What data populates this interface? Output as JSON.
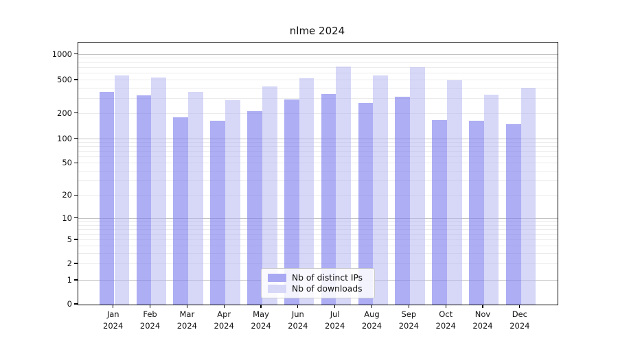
{
  "title": "nlme 2024",
  "y_axis": {
    "tick_labels": [
      "0",
      "1",
      "2",
      "5",
      "10",
      "20",
      "50",
      "100",
      "200",
      "500",
      "1000"
    ],
    "tick_values": [
      0,
      1,
      2,
      5,
      10,
      20,
      50,
      100,
      200,
      500,
      1000
    ]
  },
  "x_axis": {
    "months": [
      "Jan",
      "Feb",
      "Mar",
      "Apr",
      "May",
      "Jun",
      "Jul",
      "Aug",
      "Sep",
      "Oct",
      "Nov",
      "Dec"
    ],
    "year": "2024"
  },
  "legend": {
    "items": [
      {
        "label": "Nb of distinct IPs",
        "swatch": "#a9a9f3"
      },
      {
        "label": "Nb of downloads",
        "swatch": "#d7d7f8"
      }
    ]
  },
  "colors": {
    "ips_bar": "rgba(124,124,237,0.62)",
    "downloads_bar": "rgba(178,178,241,0.52)",
    "grid_major": "#c3c3c3",
    "grid_minor": "#ebebeb",
    "axis": "#000000"
  },
  "chart_data": {
    "type": "bar",
    "title": "nlme 2024",
    "categories": [
      "Jan 2024",
      "Feb 2024",
      "Mar 2024",
      "Apr 2024",
      "May 2024",
      "Jun 2024",
      "Jul 2024",
      "Aug 2024",
      "Sep 2024",
      "Oct 2024",
      "Nov 2024",
      "Dec 2024"
    ],
    "series": [
      {
        "name": "Nb of distinct IPs",
        "values": [
          365,
          330,
          180,
          163,
          215,
          295,
          340,
          270,
          318,
          168,
          163,
          150
        ]
      },
      {
        "name": "Nb of downloads",
        "values": [
          570,
          540,
          365,
          290,
          425,
          525,
          730,
          570,
          710,
          500,
          335,
          410
        ]
      }
    ],
    "yscale": "log-like with ticks 0,1,2,5,10,20,50,100,200,500,1000",
    "ylim": [
      0,
      1400
    ],
    "grid": true,
    "legend_position": "lower center inside plot"
  }
}
